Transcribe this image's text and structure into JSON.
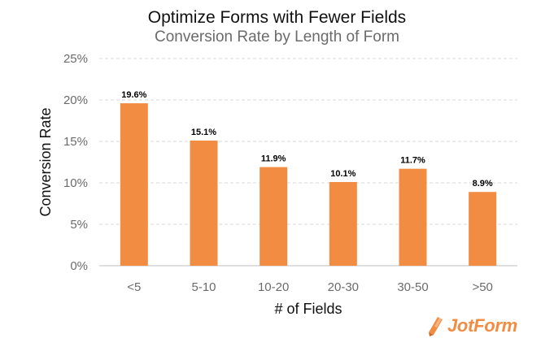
{
  "chart_data": {
    "type": "bar",
    "title": "Optimize Forms with Fewer Fields",
    "subtitle": "Conversion Rate by Length of Form",
    "xlabel": "# of Fields",
    "ylabel": "Conversion Rate",
    "categories": [
      "<5",
      "5-10",
      "10-20",
      "20-30",
      "30-50",
      ">50"
    ],
    "values": [
      19.6,
      15.1,
      11.9,
      10.1,
      11.7,
      8.9
    ],
    "data_labels": [
      "19.6%",
      "15.1%",
      "11.9%",
      "10.1%",
      "11.7%",
      "8.9%"
    ],
    "ylim": [
      0,
      25
    ],
    "yticks": [
      0,
      5,
      10,
      15,
      20,
      25
    ],
    "ytick_labels": [
      "0%",
      "5%",
      "10%",
      "15%",
      "20%",
      "25%"
    ],
    "grid": true,
    "legend": "none",
    "bar_color": "#f28c43"
  },
  "logo": {
    "text": "JotForm",
    "color": "#f28c43"
  }
}
